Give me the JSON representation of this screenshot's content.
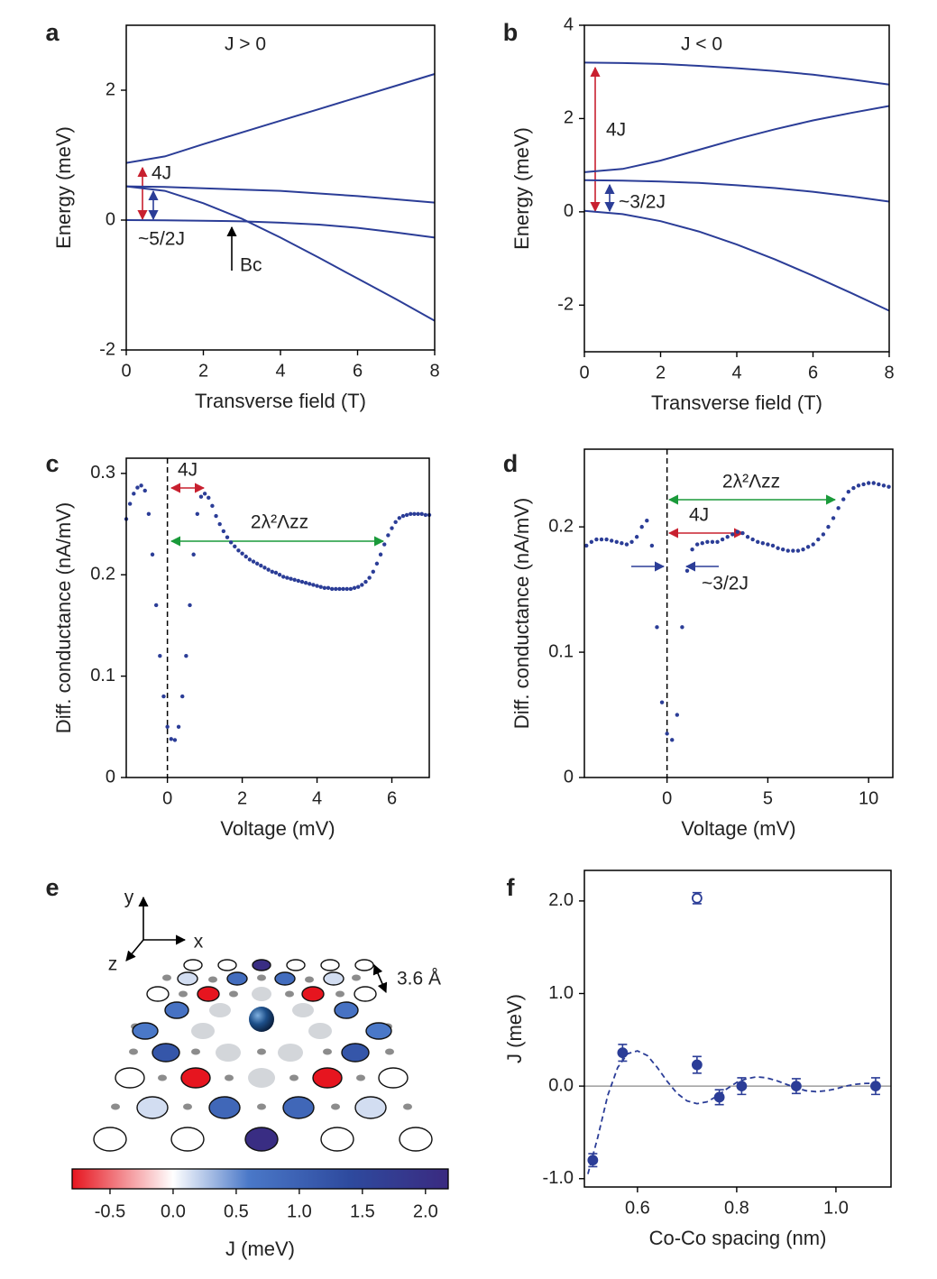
{
  "chart_data": [
    {
      "type": "line",
      "panel": "a",
      "xlabel": "Transverse field (T)",
      "ylabel": "Energy (meV)",
      "xlim": [
        0,
        8
      ],
      "ylim": [
        -2,
        3
      ],
      "xticks": [
        0,
        2,
        4,
        6,
        8
      ],
      "yticks": [
        -2,
        0,
        2
      ],
      "x": [
        0,
        1,
        2,
        3,
        4,
        5,
        6,
        7,
        8
      ],
      "series": [
        {
          "color": "#2b3d97",
          "values": [
            0.88,
            0.98,
            1.17,
            1.35,
            1.53,
            1.71,
            1.89,
            2.07,
            2.25
          ]
        },
        {
          "color": "#2b3d97",
          "values": [
            0.52,
            0.51,
            0.49,
            0.47,
            0.45,
            0.41,
            0.37,
            0.32,
            0.27
          ]
        },
        {
          "color": "#2b3d97",
          "values": [
            0,
            -0.003,
            -0.01,
            -0.02,
            -0.04,
            -0.07,
            -0.12,
            -0.19,
            -0.27
          ]
        },
        {
          "color": "#2b3d97",
          "values": [
            0.52,
            0.45,
            0.26,
            0.02,
            -0.27,
            -0.58,
            -0.9,
            -1.22,
            -1.55
          ]
        }
      ],
      "annotations": [
        {
          "text": "J > 0",
          "color": "#000000"
        },
        {
          "text": "4J",
          "color": "#c8202f"
        },
        {
          "text": "~5/2J",
          "color": "#2b3d97"
        },
        {
          "text": "Bc",
          "color": "#000000"
        }
      ]
    },
    {
      "type": "line",
      "panel": "b",
      "xlabel": "Transverse field (T)",
      "ylabel": "Energy (meV)",
      "xlim": [
        0,
        8
      ],
      "ylim": [
        -3,
        4
      ],
      "xticks": [
        0,
        2,
        4,
        6,
        8
      ],
      "yticks": [
        -2,
        0,
        2,
        4
      ],
      "x": [
        0,
        1,
        2,
        3,
        4,
        5,
        6,
        7,
        8
      ],
      "series": [
        {
          "color": "#2b3d97",
          "values": [
            3.2,
            3.19,
            3.17,
            3.13,
            3.08,
            3.02,
            2.94,
            2.84,
            2.73
          ]
        },
        {
          "color": "#2b3d97",
          "values": [
            0.85,
            0.92,
            1.1,
            1.33,
            1.56,
            1.77,
            1.96,
            2.12,
            2.27
          ]
        },
        {
          "color": "#2b3d97",
          "values": [
            0.68,
            0.67,
            0.65,
            0.62,
            0.57,
            0.51,
            0.43,
            0.33,
            0.22
          ]
        },
        {
          "color": "#2b3d97",
          "values": [
            0.02,
            -0.05,
            -0.2,
            -0.42,
            -0.7,
            -1.02,
            -1.37,
            -1.74,
            -2.12
          ]
        }
      ],
      "annotations": [
        {
          "text": "J < 0",
          "color": "#000000"
        },
        {
          "text": "4J",
          "color": "#c8202f"
        },
        {
          "text": "~3/2J",
          "color": "#2b3d97"
        }
      ]
    },
    {
      "type": "scatter",
      "panel": "c",
      "xlabel": "Voltage (mV)",
      "ylabel": "Diff. conductance (nA/mV)",
      "xlim": [
        -1.1,
        7.0
      ],
      "ylim": [
        0,
        0.315
      ],
      "xticks": [
        0,
        2,
        4,
        6
      ],
      "yticks": [
        0,
        0.1,
        0.2,
        0.3
      ],
      "vline": 0,
      "color": "#2b3d97",
      "x": [
        -1.1,
        -1.0,
        -0.9,
        -0.8,
        -0.7,
        -0.6,
        -0.5,
        -0.4,
        -0.3,
        -0.2,
        -0.1,
        0.0,
        0.1,
        0.2,
        0.3,
        0.4,
        0.5,
        0.6,
        0.7,
        0.8,
        0.9,
        1.0,
        1.1,
        1.2,
        1.3,
        1.4,
        1.5,
        1.6,
        1.7,
        1.8,
        1.9,
        2.0,
        2.1,
        2.2,
        2.3,
        2.4,
        2.5,
        2.6,
        2.7,
        2.8,
        2.9,
        3.0,
        3.1,
        3.2,
        3.3,
        3.4,
        3.5,
        3.6,
        3.7,
        3.8,
        3.9,
        4.0,
        4.1,
        4.2,
        4.3,
        4.4,
        4.5,
        4.6,
        4.7,
        4.8,
        4.9,
        5.0,
        5.1,
        5.2,
        5.3,
        5.4,
        5.5,
        5.6,
        5.7,
        5.8,
        5.9,
        6.0,
        6.1,
        6.2,
        6.3,
        6.4,
        6.5,
        6.6,
        6.7,
        6.8,
        6.9,
        7.0
      ],
      "values": [
        0.255,
        0.27,
        0.28,
        0.286,
        0.288,
        0.283,
        0.26,
        0.22,
        0.17,
        0.12,
        0.08,
        0.05,
        0.038,
        0.037,
        0.05,
        0.08,
        0.12,
        0.17,
        0.22,
        0.26,
        0.277,
        0.28,
        0.276,
        0.268,
        0.258,
        0.25,
        0.243,
        0.237,
        0.232,
        0.228,
        0.224,
        0.221,
        0.218,
        0.215,
        0.213,
        0.211,
        0.209,
        0.207,
        0.205,
        0.203,
        0.202,
        0.2,
        0.198,
        0.197,
        0.196,
        0.195,
        0.194,
        0.193,
        0.192,
        0.191,
        0.19,
        0.189,
        0.188,
        0.187,
        0.187,
        0.186,
        0.186,
        0.186,
        0.186,
        0.186,
        0.186,
        0.187,
        0.188,
        0.19,
        0.193,
        0.197,
        0.203,
        0.211,
        0.22,
        0.23,
        0.239,
        0.246,
        0.252,
        0.256,
        0.258,
        0.259,
        0.26,
        0.26,
        0.26,
        0.26,
        0.259,
        0.259
      ],
      "annotations": [
        {
          "text": "4J",
          "color": "#c8202f"
        },
        {
          "text": "2λ²Λzz",
          "color": "#1a9a3a"
        }
      ]
    },
    {
      "type": "scatter",
      "panel": "d",
      "xlabel": "Voltage (mV)",
      "ylabel": "Diff. conductance (nA/mV)",
      "xlim": [
        -4.1,
        11.2
      ],
      "ylim": [
        0,
        0.262
      ],
      "xticks": [
        0,
        5,
        10
      ],
      "yticks": [
        0,
        0.1,
        0.2
      ],
      "vline": 0,
      "color": "#2b3d97",
      "x": [
        -4,
        -3.75,
        -3.5,
        -3.25,
        -3,
        -2.75,
        -2.5,
        -2.25,
        -2,
        -1.75,
        -1.5,
        -1.25,
        -1,
        -0.75,
        -0.5,
        -0.25,
        0,
        0.25,
        0.5,
        0.75,
        1,
        1.25,
        1.5,
        1.75,
        2,
        2.25,
        2.5,
        2.75,
        3,
        3.25,
        3.5,
        3.75,
        4,
        4.25,
        4.5,
        4.75,
        5,
        5.25,
        5.5,
        5.75,
        6,
        6.25,
        6.5,
        6.75,
        7,
        7.25,
        7.5,
        7.75,
        8,
        8.25,
        8.5,
        8.75,
        9,
        9.25,
        9.5,
        9.75,
        10,
        10.25,
        10.5,
        10.75,
        11
      ],
      "values": [
        0.185,
        0.188,
        0.19,
        0.19,
        0.19,
        0.189,
        0.188,
        0.187,
        0.186,
        0.188,
        0.192,
        0.2,
        0.205,
        0.185,
        0.12,
        0.06,
        0.035,
        0.03,
        0.05,
        0.12,
        0.165,
        0.182,
        0.186,
        0.187,
        0.188,
        0.188,
        0.188,
        0.19,
        0.192,
        0.194,
        0.196,
        0.195,
        0.192,
        0.19,
        0.188,
        0.187,
        0.186,
        0.185,
        0.183,
        0.182,
        0.181,
        0.181,
        0.181,
        0.182,
        0.184,
        0.186,
        0.19,
        0.194,
        0.2,
        0.207,
        0.215,
        0.222,
        0.228,
        0.231,
        0.233,
        0.234,
        0.235,
        0.235,
        0.234,
        0.233,
        0.232
      ],
      "annotations": [
        {
          "text": "2λ²Λzz",
          "color": "#1a9a3a"
        },
        {
          "text": "4J",
          "color": "#c8202f"
        },
        {
          "text": "~3/2J",
          "color": "#2b3d97"
        }
      ]
    },
    {
      "type": "lattice",
      "panel": "e",
      "sites": [
        [
          0,
          0,
          2.1,
          0,
          0,
          0
        ],
        [
          0.15,
          0.8,
          0.8,
          0.15
        ],
        [
          0,
          -0.85,
          -0.85,
          0
        ],
        [
          0.7,
          0.7
        ],
        [
          0.6,
          0.6
        ],
        [
          1.2,
          1.2
        ],
        [
          0,
          -0.85,
          -0.85,
          0
        ],
        [
          0.15,
          0.9,
          0.9,
          0.15
        ],
        [
          0,
          0,
          2.1,
          0,
          0
        ]
      ],
      "colormap": [
        {
          "value": -0.8,
          "color": "#e6151f"
        },
        {
          "value": 0,
          "color": "#ffffff"
        },
        {
          "value": 0.6,
          "color": "#4a78c8"
        },
        {
          "value": 1.4,
          "color": "#2e4a9e"
        },
        {
          "value": 2.18,
          "color": "#3a2a80"
        }
      ],
      "clim": [
        -0.8,
        2.18
      ],
      "cticks": [
        -0.5,
        {
          "value": 0,
          "label": "0.0"
        },
        0.5,
        {
          "value": 1,
          "label": "1.0"
        },
        1.5,
        {
          "value": 2,
          "label": "2.0"
        }
      ],
      "clabel": "J (meV)",
      "annotations": [
        {
          "text": "y",
          "color": "#000000"
        },
        {
          "text": "x",
          "color": "#000000"
        },
        {
          "text": "z",
          "color": "#000000"
        },
        {
          "text": "3.6 Å",
          "color": "#000000"
        }
      ]
    },
    {
      "type": "errorbar",
      "panel": "f",
      "xlabel": "Co-Co spacing (nm)",
      "ylabel": "J (meV)",
      "xlim": [
        0.493,
        1.111
      ],
      "ylim": [
        -1.09,
        2.33
      ],
      "xticks": [
        0.6,
        0.8,
        {
          "value": 1,
          "label": "1.0"
        }
      ],
      "yticks": [
        {
          "value": 2,
          "label": "2.0"
        },
        {
          "value": 1,
          "label": "1.0"
        },
        {
          "value": 0,
          "label": "0.0"
        },
        {
          "value": -1,
          "label": "-1.0"
        }
      ],
      "hline": 0,
      "color": "#2b3d97",
      "series": [
        {
          "marker": "filled",
          "x": [
            0.51,
            0.57,
            0.72,
            0.765,
            0.81,
            0.92,
            1.08
          ],
          "values": [
            -0.8,
            0.36,
            0.23,
            -0.12,
            0.0,
            0.0,
            0.0
          ],
          "errors": [
            0.07,
            0.09,
            0.09,
            0.08,
            0.09,
            0.08,
            0.09
          ]
        },
        {
          "marker": "open",
          "x": [
            0.72
          ],
          "values": [
            2.03
          ],
          "errors": [
            0.06
          ]
        }
      ],
      "fit": {
        "x": [
          0.5,
          0.52,
          0.54,
          0.56,
          0.58,
          0.6,
          0.62,
          0.64,
          0.66,
          0.68,
          0.7,
          0.72,
          0.74,
          0.76,
          0.78,
          0.8,
          0.82,
          0.84,
          0.86,
          0.88,
          0.9,
          0.92,
          0.94,
          0.96,
          0.98,
          1.0,
          1.02,
          1.04,
          1.06,
          1.08
        ],
        "values": [
          -0.95,
          -0.55,
          -0.1,
          0.2,
          0.35,
          0.38,
          0.33,
          0.2,
          0.05,
          -0.08,
          -0.16,
          -0.19,
          -0.17,
          -0.11,
          -0.03,
          0.04,
          0.08,
          0.1,
          0.09,
          0.06,
          0.02,
          -0.02,
          -0.05,
          -0.06,
          -0.05,
          -0.03,
          0.0,
          0.02,
          0.03,
          0.03
        ]
      }
    }
  ]
}
